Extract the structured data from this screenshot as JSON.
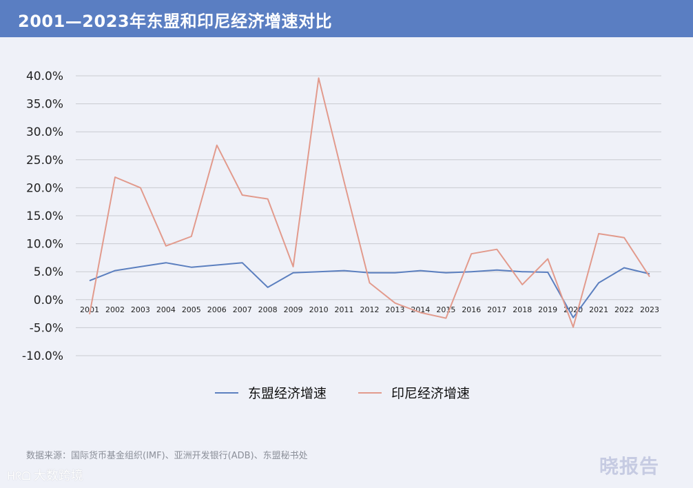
{
  "header": {
    "title": "2001—2023年东盟和印尼经济增速对比"
  },
  "source": "数据来源：国际货币基金组织(IMF)、亚洲开发银行(ADB)、东盟秘书处",
  "watermark_left": {
    "logo": "ᕼᖇᗝ",
    "text": "大数跨境"
  },
  "watermark_right": "晓报告",
  "colors": {
    "header_bg": "#5a7ec2",
    "asean": "#5b7fbf",
    "indonesia": "#e29a8c",
    "grid": "#c8cad0"
  },
  "chart_data": {
    "type": "line",
    "title": "",
    "xlabel": "",
    "ylabel": "",
    "x": [
      "2001",
      "2002",
      "2003",
      "2004",
      "2005",
      "2006",
      "2007",
      "2008",
      "2009",
      "2010",
      "2011",
      "2012",
      "2013",
      "2014",
      "2015",
      "2016",
      "2017",
      "2018",
      "2019",
      "2020",
      "2021",
      "2022",
      "2023"
    ],
    "ylim": [
      -10,
      40
    ],
    "yticks": [
      40,
      35,
      30,
      25,
      20,
      15,
      10,
      5,
      0,
      -5,
      -10
    ],
    "ytick_labels": [
      "40.0%",
      "35.0%",
      "30.0%",
      "25.0%",
      "20.0%",
      "15.0%",
      "10.0%",
      "5.0%",
      "0.0%",
      "-5.0%",
      "-10.0%"
    ],
    "grid": true,
    "legend_position": "bottom",
    "series": [
      {
        "name": "东盟经济增速",
        "color": "#5b7fbf",
        "values": [
          3.4,
          5.2,
          5.9,
          6.6,
          5.8,
          6.2,
          6.6,
          2.2,
          4.8,
          5.0,
          5.2,
          4.8,
          4.8,
          5.2,
          4.8,
          5.0,
          5.3,
          5.0,
          4.9,
          -3.2,
          3.0,
          5.7,
          4.6
        ]
      },
      {
        "name": "印尼经济增速",
        "color": "#e29a8c",
        "values": [
          -2.6,
          21.9,
          20.0,
          9.6,
          11.3,
          27.6,
          18.7,
          18.0,
          5.9,
          39.6,
          21.1,
          3.0,
          -0.6,
          -2.3,
          -3.3,
          8.2,
          9.0,
          2.7,
          7.3,
          -4.9,
          11.8,
          11.1,
          4.1
        ]
      }
    ]
  }
}
